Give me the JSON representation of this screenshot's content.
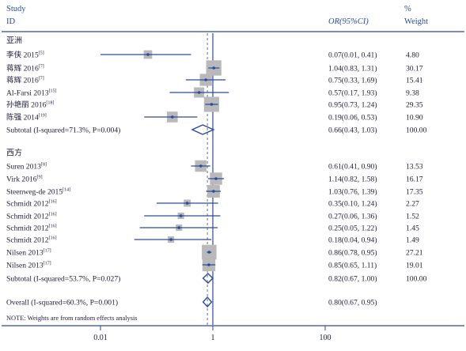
{
  "header": {
    "study": "Study",
    "id": "ID",
    "or_label": "OR(95%CI)",
    "pct": "%",
    "weight": "Weight"
  },
  "chart_data": {
    "type": "forest",
    "x_scale": "log",
    "x_ticks": [
      "0.01",
      "1",
      "100"
    ],
    "xlim": [
      0.0025,
      400
    ],
    "null_line": 1,
    "overall_estimate": 0.8,
    "groups": [
      {
        "name": "亚洲",
        "studies": [
          {
            "label": "李侠 2015",
            "ref": "[5]",
            "or": 0.07,
            "lo": 0.01,
            "hi": 0.41,
            "text": "0.07(0.01, 0.41)",
            "weight": "4.80"
          },
          {
            "label": "蒋辉 2016",
            "ref": "[7]",
            "or": 1.04,
            "lo": 0.83,
            "hi": 1.31,
            "text": "1.04(0.83, 1.31)",
            "weight": "30.17"
          },
          {
            "label": "蒋辉 2016",
            "ref": "[7]",
            "or": 0.75,
            "lo": 0.33,
            "hi": 1.69,
            "text": "0.75(0.33, 1.69)",
            "weight": "15.41"
          },
          {
            "label": "Al-Farsi 2013",
            "ref": "[15]",
            "or": 0.57,
            "lo": 0.17,
            "hi": 1.93,
            "text": "0.57(0.17, 1.93)",
            "weight": "9.38"
          },
          {
            "label": "孙艳丽 2016",
            "ref": "[18]",
            "or": 0.95,
            "lo": 0.73,
            "hi": 1.24,
            "text": "0.95(0.73, 1.24)",
            "weight": "29.35"
          },
          {
            "label": "陈强 2014",
            "ref": "[19]",
            "or": 0.19,
            "lo": 0.06,
            "hi": 0.53,
            "text": "0.19(0.06, 0.53)",
            "weight": "10.90"
          }
        ],
        "subtotal": {
          "label": "Subtotal (I-squared=71.3%, P=0.004)",
          "or": 0.66,
          "lo": 0.43,
          "hi": 1.03,
          "text": "0.66(0.43, 1.03)",
          "weight": "100.00"
        }
      },
      {
        "name": "西方",
        "studies": [
          {
            "label": "Suren 2013",
            "ref": "[8]",
            "or": 0.61,
            "lo": 0.41,
            "hi": 0.9,
            "text": "0.61(0.41, 0.90)",
            "weight": "13.53"
          },
          {
            "label": "Virk 2016",
            "ref": "[9]",
            "or": 1.14,
            "lo": 0.82,
            "hi": 1.58,
            "text": "1.14(0.82, 1.58)",
            "weight": "16.17"
          },
          {
            "label": "Steenweg-de 2015",
            "ref": "[14]",
            "or": 1.03,
            "lo": 0.76,
            "hi": 1.39,
            "text": "1.03(0.76, 1.39)",
            "weight": "17.35"
          },
          {
            "label": "Schmidt 2012",
            "ref": "[16]",
            "or": 0.35,
            "lo": 0.1,
            "hi": 1.24,
            "text": "0.35(0.10, 1.24)",
            "weight": "2.27"
          },
          {
            "label": "Schmidt 2012",
            "ref": "[16]",
            "or": 0.27,
            "lo": 0.06,
            "hi": 1.36,
            "text": "0.27(0.06, 1.36)",
            "weight": "1.52"
          },
          {
            "label": "Schmidt 2012",
            "ref": "[16]",
            "or": 0.25,
            "lo": 0.05,
            "hi": 1.22,
            "text": "0.25(0.05, 1.22)",
            "weight": "1.45"
          },
          {
            "label": "Schmidt 2012",
            "ref": "[16]",
            "or": 0.18,
            "lo": 0.04,
            "hi": 0.94,
            "text": "0.18(0.04, 0.94)",
            "weight": "1.49"
          },
          {
            "label": "Nilsen 2013",
            "ref": "[17]",
            "or": 0.86,
            "lo": 0.78,
            "hi": 0.95,
            "text": "0.86(0.78, 0.95)",
            "weight": "27.21"
          },
          {
            "label": "Nilsen 2013",
            "ref": "[17]",
            "or": 0.85,
            "lo": 0.65,
            "hi": 1.11,
            "text": "0.85(0.65, 1.11)",
            "weight": "19.01"
          }
        ],
        "subtotal": {
          "label": "Subtotal (I-squared=53.7%, P=0.027)",
          "or": 0.82,
          "lo": 0.67,
          "hi": 1.0,
          "text": "0.82(0.67, 1.00)",
          "weight": "100.00"
        }
      }
    ],
    "overall": {
      "label": "Overall (I-squared=60.3%, P=0.001)",
      "or": 0.8,
      "lo": 0.67,
      "hi": 0.95,
      "text": "0.80(0.67, 0.95)"
    },
    "note": "NOTE: Weights are from random effects analysis"
  },
  "colors": {
    "line": "#2b4a9a",
    "box": "#b9b9bc",
    "dot": "#2b4a9a",
    "diamond": "#2b4a9a",
    "text": "#1c1c3a"
  }
}
